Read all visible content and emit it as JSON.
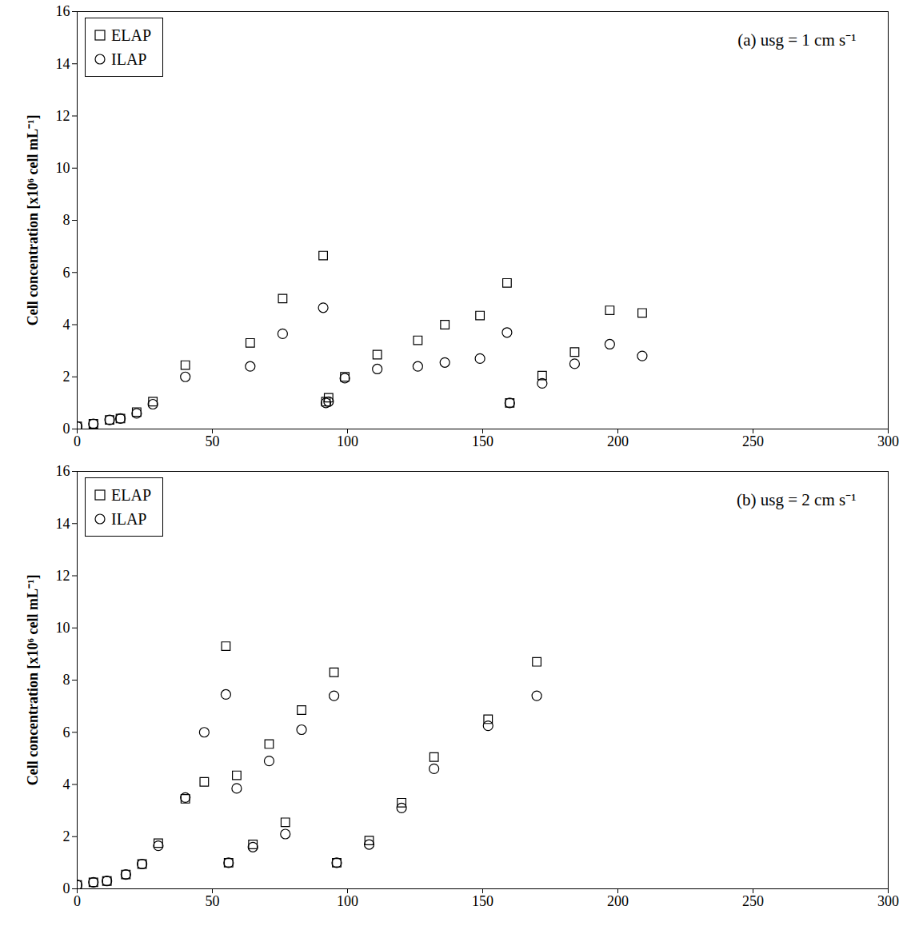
{
  "chart_data": [
    {
      "type": "scatter",
      "title": "(a) usg = 1 cm s⁻¹",
      "y_label": "Cell concentration [x10⁶ cell mL⁻¹]",
      "xlim": [
        0,
        300
      ],
      "xticks": [
        0,
        50,
        100,
        150,
        200,
        250,
        300
      ],
      "ylim": [
        0,
        16
      ],
      "yticks": [
        0,
        2,
        4,
        6,
        8,
        10,
        12,
        14,
        16
      ],
      "grid": false,
      "legend": "top-left",
      "series": [
        {
          "name": "ELAP",
          "color": "#000000",
          "marker": "square",
          "x": [
            0,
            6,
            12,
            16,
            22,
            28,
            40,
            64,
            76,
            91,
            92,
            93,
            99,
            111,
            126,
            136,
            149,
            159,
            160,
            172,
            184,
            197,
            209
          ],
          "values": [
            0.1,
            0.2,
            0.35,
            0.4,
            0.65,
            1.05,
            2.45,
            3.3,
            5.0,
            6.65,
            1.05,
            1.2,
            2.0,
            2.85,
            3.4,
            4.0,
            4.35,
            5.6,
            1.0,
            2.05,
            2.95,
            4.55,
            4.45
          ]
        },
        {
          "name": "ILAP",
          "color": "#000000",
          "marker": "circle",
          "x": [
            0,
            6,
            12,
            16,
            22,
            28,
            40,
            64,
            76,
            91,
            92,
            93,
            99,
            111,
            126,
            136,
            149,
            159,
            160,
            172,
            184,
            197,
            209
          ],
          "values": [
            0.1,
            0.2,
            0.35,
            0.4,
            0.6,
            0.95,
            2.0,
            2.4,
            3.65,
            4.65,
            1.0,
            1.05,
            1.95,
            2.3,
            2.4,
            2.55,
            2.7,
            3.7,
            1.0,
            1.75,
            2.5,
            3.25,
            2.8
          ]
        }
      ]
    },
    {
      "type": "scatter",
      "title": "(b) usg = 2 cm s⁻¹",
      "y_label": "Cell concentration [x10⁶ cell mL⁻¹]",
      "xlim": [
        0,
        300
      ],
      "xticks": [
        0,
        50,
        100,
        150,
        200,
        250,
        300
      ],
      "ylim": [
        0,
        16
      ],
      "yticks": [
        0,
        2,
        4,
        6,
        8,
        10,
        12,
        14,
        16
      ],
      "grid": false,
      "legend": "top-left",
      "series": [
        {
          "name": "ELAP",
          "color": "#000000",
          "marker": "square",
          "x": [
            0,
            6,
            11,
            18,
            24,
            30,
            40,
            47,
            55,
            56,
            59,
            65,
            71,
            77,
            83,
            95,
            96,
            108,
            120,
            132,
            152,
            170
          ],
          "values": [
            0.15,
            0.25,
            0.3,
            0.55,
            0.95,
            1.75,
            3.45,
            4.1,
            9.3,
            1.0,
            4.35,
            1.7,
            5.55,
            2.55,
            6.85,
            8.3,
            1.0,
            1.85,
            3.3,
            5.05,
            6.5,
            8.7
          ]
        },
        {
          "name": "ILAP",
          "color": "#000000",
          "marker": "circle",
          "x": [
            0,
            6,
            11,
            18,
            24,
            30,
            40,
            47,
            55,
            56,
            59,
            65,
            71,
            77,
            83,
            95,
            96,
            108,
            120,
            132,
            152,
            170
          ],
          "values": [
            0.15,
            0.25,
            0.3,
            0.55,
            0.95,
            1.65,
            3.5,
            6.0,
            7.45,
            1.0,
            3.85,
            1.6,
            4.9,
            2.1,
            6.1,
            7.4,
            1.0,
            1.7,
            3.1,
            4.6,
            6.25,
            7.4
          ]
        }
      ]
    }
  ]
}
